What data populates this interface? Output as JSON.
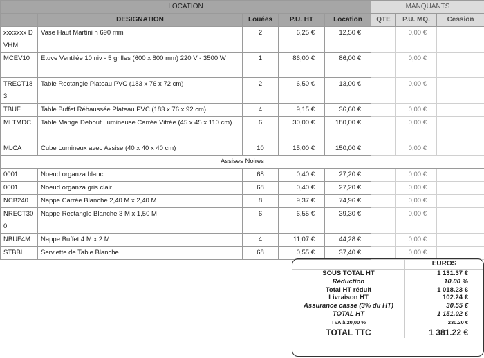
{
  "header": {
    "location_label": "LOCATION",
    "manquants_label": "MANQUANTS",
    "columns": [
      "",
      "DESIGNATION",
      "Louées",
      "P.U. HT",
      "Location",
      "QTE",
      "P.U. MQ.",
      "Cession"
    ]
  },
  "rows": [
    {
      "code": "xxxxxxx DVHM",
      "designation": "Vase Haut Martini h 690 mm",
      "louees": "2",
      "pu_ht": "6,25  €",
      "location": "12,50  €",
      "qte": "",
      "pu_mq": "0,00  €",
      "cession": "",
      "lines": 2
    },
    {
      "code": "MCEV10",
      "designation": "Etuve Ventilée 10 niv - 5  grilles  (600 x 800 mm) 220 V  - 3500 W",
      "louees": "1",
      "pu_ht": "86,00  €",
      "location": "86,00  €",
      "qte": "",
      "pu_mq": "0,00  €",
      "cession": "",
      "lines": 2
    },
    {
      "code": "TRECT183",
      "designation": "Table Rectangle Plateau PVC (183 x 76 x 72 cm)",
      "louees": "2",
      "pu_ht": "6,50  €",
      "location": "13,00  €",
      "qte": "",
      "pu_mq": "0,00  €",
      "cession": "",
      "lines": 2
    },
    {
      "code": "TBUF",
      "designation": "Table Buffet Réhaussée Plateau PVC (183 x 76 x 92 cm)",
      "louees": "4",
      "pu_ht": "9,15  €",
      "location": "36,60  €",
      "qte": "",
      "pu_mq": "0,00  €",
      "cession": "",
      "lines": 1
    },
    {
      "code": "MLTMDC",
      "designation": "Table Mange Debout Lumineuse Carrée Vitrée (45 x 45 x 110 cm)",
      "louees": "6",
      "pu_ht": "30,00  €",
      "location": "180,00  €",
      "qte": "",
      "pu_mq": "0,00  €",
      "cession": "",
      "lines": 2
    },
    {
      "code": "MLCA",
      "designation": "Cube Lumineux avec Assise (40 x 40 x 40 cm)",
      "louees": "10",
      "pu_ht": "15,00  €",
      "location": "150,00  €",
      "qte": "",
      "pu_mq": "0,00  €",
      "cession": "",
      "lines": 1
    },
    {
      "section": "Assises Noires"
    },
    {
      "code": "0001",
      "designation": "Noeud organza blanc",
      "louees": "68",
      "pu_ht": "0,40  €",
      "location": "27,20  €",
      "qte": "",
      "pu_mq": "0,00  €",
      "cession": "",
      "lines": 1
    },
    {
      "code": "0001",
      "designation": "Noeud organza gris clair",
      "louees": "68",
      "pu_ht": "0,40  €",
      "location": "27,20  €",
      "qte": "",
      "pu_mq": "0,00  €",
      "cession": "",
      "lines": 1
    },
    {
      "code": "NCB240",
      "designation": "Nappe Carrée  Blanche 2,40 M x 2,40 M",
      "louees": "8",
      "pu_ht": "9,37  €",
      "location": "74,96  €",
      "qte": "",
      "pu_mq": "0,00  €",
      "cession": "",
      "lines": 1
    },
    {
      "code": "NRECT300",
      "designation": "Nappe Rectangle Blanche 3 M x 1,50 M",
      "louees": "6",
      "pu_ht": "6,55  €",
      "location": "39,30  €",
      "qte": "",
      "pu_mq": "0,00  €",
      "cession": "",
      "lines": 2
    },
    {
      "code": "NBUF4M",
      "designation": "Nappe Buffet 4 M x 2 M",
      "louees": "4",
      "pu_ht": "11,07  €",
      "location": "44,28  €",
      "qte": "",
      "pu_mq": "0,00  €",
      "cession": "",
      "lines": 1
    },
    {
      "code": "STBBL",
      "designation": "Serviette de Table Blanche",
      "louees": "68",
      "pu_ht": "0,55  €",
      "location": "37,40  €",
      "qte": "",
      "pu_mq": "0,00  €",
      "cession": "",
      "lines": 1
    }
  ],
  "summary": {
    "currency_header": "EUROS",
    "lines": [
      {
        "label": "SOUS TOTAL HT",
        "value": "1 131.37  €",
        "style": ""
      },
      {
        "label": "Réduction",
        "value": "10.00 %",
        "style": "it"
      },
      {
        "label": "Total HT réduit",
        "value": "1 018.23  €",
        "style": ""
      },
      {
        "label": "Livraison HT",
        "value": "102.24  €",
        "style": ""
      },
      {
        "label": "Assurance casse (3% du HT)",
        "value": "30.55  €",
        "style": "it"
      },
      {
        "label": "TOTAL HT",
        "value": "1 151.02  €",
        "style": "it"
      },
      {
        "label": "TVA à 20,00 %",
        "value": "230.20  €",
        "style": "sm"
      },
      {
        "label": "TOTAL TTC",
        "value": "1 381.22  €",
        "style": "big"
      }
    ]
  }
}
